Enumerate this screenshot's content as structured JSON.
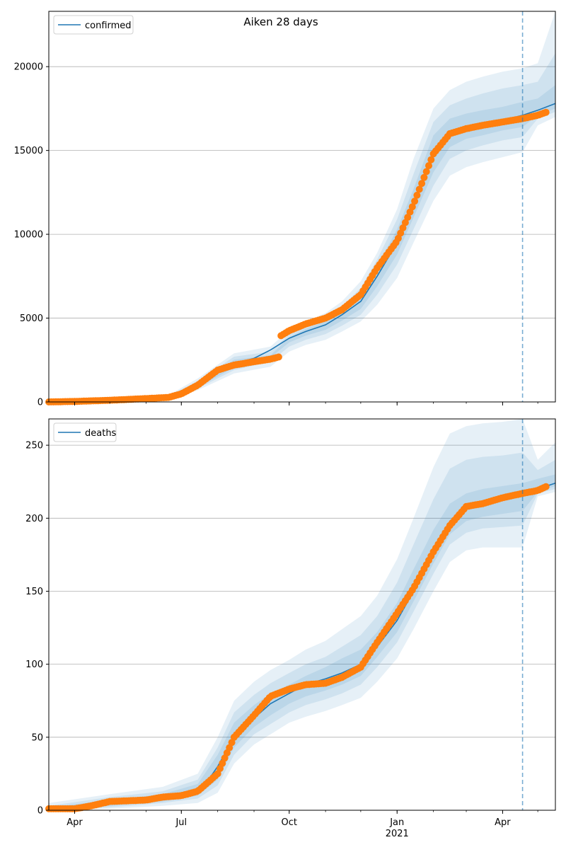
{
  "figure": {
    "suptitle": "Aiken 28 days"
  },
  "colors": {
    "model_line": "#1f77b4",
    "observed_points": "#ff7f0e",
    "band": "#1f77b4",
    "forecast_marker": "#1f77b4",
    "grid": "#b0b0b0",
    "axis": "#000000"
  },
  "chart_data": [
    {
      "type": "line",
      "panel": "top",
      "title": "",
      "xlabel": "",
      "ylabel": "",
      "legend": {
        "entries": [
          "confirmed"
        ],
        "placement": "top-left"
      },
      "grid": "horizontal",
      "x_range": [
        "2020-03-10",
        "2021-05-16"
      ],
      "ylim": [
        0,
        23300
      ],
      "yticks": [
        0,
        5000,
        10000,
        15000,
        20000
      ],
      "ytick_labels": [
        "0",
        "5000",
        "10000",
        "15000",
        "20000"
      ],
      "xticks": [
        {
          "date": "2020-04-01",
          "label": "Apr",
          "sublabel": ""
        },
        {
          "date": "2020-07-01",
          "label": "Jul",
          "sublabel": ""
        },
        {
          "date": "2020-10-01",
          "label": "Oct",
          "sublabel": ""
        },
        {
          "date": "2021-01-01",
          "label": "Jan",
          "sublabel": "2021"
        },
        {
          "date": "2021-04-01",
          "label": "Apr",
          "sublabel": ""
        }
      ],
      "forecast_start": "2021-04-18",
      "series": [
        {
          "name": "confirmed",
          "role": "model",
          "x": [
            "2020-03-10",
            "2020-04-01",
            "2020-05-01",
            "2020-06-01",
            "2020-06-20",
            "2020-07-01",
            "2020-07-15",
            "2020-08-01",
            "2020-08-15",
            "2020-09-01",
            "2020-09-15",
            "2020-10-01",
            "2020-10-15",
            "2020-11-01",
            "2020-11-15",
            "2020-12-01",
            "2020-12-15",
            "2021-01-01",
            "2021-01-15",
            "2021-02-01",
            "2021-02-15",
            "2021-03-01",
            "2021-03-15",
            "2021-04-01",
            "2021-04-18",
            "2021-05-01",
            "2021-05-16"
          ],
          "values": [
            0,
            30,
            100,
            200,
            270,
            480,
            1000,
            2000,
            2300,
            2600,
            3100,
            3800,
            4200,
            4600,
            5200,
            6000,
            7500,
            9500,
            11800,
            14800,
            16000,
            16400,
            16600,
            16800,
            17100,
            17400,
            17800
          ]
        },
        {
          "name": "",
          "role": "observed",
          "x": [
            "2020-03-10",
            "2020-04-01",
            "2020-05-01",
            "2020-06-01",
            "2020-06-20",
            "2020-07-01",
            "2020-07-15",
            "2020-08-01",
            "2020-08-15",
            "2020-09-01",
            "2020-09-15",
            "2020-09-23",
            "2020-09-24",
            "2020-10-01",
            "2020-10-15",
            "2020-11-01",
            "2020-11-15",
            "2020-12-01",
            "2020-12-15",
            "2021-01-01",
            "2021-01-15",
            "2021-02-01",
            "2021-02-15",
            "2021-03-01",
            "2021-03-15",
            "2021-04-01",
            "2021-04-18",
            "2021-05-01",
            "2021-05-09"
          ],
          "values": [
            0,
            30,
            100,
            200,
            270,
            480,
            1000,
            1900,
            2200,
            2400,
            2550,
            2700,
            3950,
            4250,
            4650,
            5000,
            5500,
            6400,
            8000,
            9600,
            11800,
            14800,
            16000,
            16300,
            16500,
            16700,
            16900,
            17100,
            17300
          ]
        }
      ],
      "bands": [
        {
          "x": [
            "2020-03-10",
            "2020-05-01",
            "2020-06-20",
            "2020-07-15",
            "2020-08-15",
            "2020-09-15",
            "2020-10-01",
            "2020-10-15",
            "2020-11-01",
            "2020-11-15",
            "2020-12-01",
            "2020-12-15",
            "2021-01-01",
            "2021-01-15",
            "2021-02-01",
            "2021-02-15",
            "2021-03-01",
            "2021-03-15",
            "2021-04-01",
            "2021-04-18",
            "2021-05-01",
            "2021-05-16"
          ],
          "lower": [
            0,
            60,
            150,
            700,
            1700,
            2100,
            3000,
            3400,
            3700,
            4200,
            4800,
            5800,
            7400,
            9500,
            12000,
            13500,
            14000,
            14300,
            14600,
            14900,
            16500,
            17000
          ],
          "upper": [
            100,
            200,
            400,
            1400,
            2900,
            3300,
            4300,
            4800,
            5300,
            6000,
            7200,
            8900,
            11500,
            14500,
            17500,
            18600,
            19100,
            19400,
            19700,
            19900,
            20200,
            23300
          ]
        },
        {
          "x": [
            "2020-03-10",
            "2020-05-01",
            "2020-06-20",
            "2020-07-15",
            "2020-08-15",
            "2020-09-15",
            "2020-10-01",
            "2020-10-15",
            "2020-11-01",
            "2020-11-15",
            "2020-12-01",
            "2020-12-15",
            "2021-01-01",
            "2021-01-15",
            "2021-02-01",
            "2021-02-15",
            "2021-03-01",
            "2021-03-15",
            "2021-04-01",
            "2021-04-18",
            "2021-05-01",
            "2021-05-16"
          ],
          "lower": [
            0,
            75,
            190,
            800,
            1900,
            2400,
            3300,
            3700,
            4050,
            4550,
            5200,
            6400,
            8200,
            10300,
            12900,
            14500,
            15000,
            15300,
            15600,
            15800,
            16900,
            17300
          ],
          "upper": [
            60,
            150,
            350,
            1250,
            2700,
            3000,
            4050,
            4550,
            5000,
            5700,
            6800,
            8500,
            10900,
            13600,
            16700,
            17700,
            18100,
            18400,
            18700,
            18900,
            19100,
            20800
          ]
        },
        {
          "x": [
            "2020-03-10",
            "2020-05-01",
            "2020-06-20",
            "2020-07-15",
            "2020-08-15",
            "2020-09-15",
            "2020-10-01",
            "2020-10-15",
            "2020-11-01",
            "2020-11-15",
            "2020-12-01",
            "2020-12-15",
            "2021-01-01",
            "2021-01-15",
            "2021-02-01",
            "2021-02-15",
            "2021-03-01",
            "2021-03-15",
            "2021-04-01",
            "2021-04-18",
            "2021-05-01",
            "2021-05-16"
          ],
          "lower": [
            0,
            85,
            220,
            880,
            2050,
            2650,
            3550,
            3950,
            4300,
            4850,
            5550,
            6900,
            8800,
            11000,
            13700,
            15200,
            15700,
            15900,
            16200,
            16400,
            17100,
            17500
          ],
          "upper": [
            40,
            120,
            310,
            1130,
            2520,
            2780,
            3850,
            4350,
            4800,
            5450,
            6450,
            8100,
            10300,
            12700,
            15900,
            16900,
            17200,
            17400,
            17600,
            17900,
            18100,
            18900
          ]
        }
      ]
    },
    {
      "type": "line",
      "panel": "bottom",
      "title": "",
      "xlabel": "",
      "ylabel": "",
      "legend": {
        "entries": [
          "deaths"
        ],
        "placement": "top-left"
      },
      "grid": "horizontal",
      "x_range": [
        "2020-03-10",
        "2021-05-16"
      ],
      "ylim": [
        0,
        268
      ],
      "yticks": [
        0,
        50,
        100,
        150,
        200,
        250
      ],
      "ytick_labels": [
        "0",
        "50",
        "100",
        "150",
        "200",
        "250"
      ],
      "xticks": [
        {
          "date": "2020-04-01",
          "label": "Apr",
          "sublabel": ""
        },
        {
          "date": "2020-07-01",
          "label": "Jul",
          "sublabel": ""
        },
        {
          "date": "2020-10-01",
          "label": "Oct",
          "sublabel": ""
        },
        {
          "date": "2021-01-01",
          "label": "Jan",
          "sublabel": "2021"
        },
        {
          "date": "2021-04-01",
          "label": "Apr",
          "sublabel": ""
        }
      ],
      "forecast_start": "2021-04-18",
      "series": [
        {
          "name": "deaths",
          "role": "model",
          "x": [
            "2020-03-10",
            "2020-04-01",
            "2020-05-01",
            "2020-06-01",
            "2020-07-01",
            "2020-07-20",
            "2020-08-01",
            "2020-08-15",
            "2020-09-01",
            "2020-09-15",
            "2020-10-01",
            "2020-10-15",
            "2020-11-01",
            "2020-11-15",
            "2020-12-01",
            "2020-12-15",
            "2021-01-01",
            "2021-01-15",
            "2021-02-01",
            "2021-02-15",
            "2021-03-01",
            "2021-03-15",
            "2021-04-01",
            "2021-04-18",
            "2021-05-01",
            "2021-05-16"
          ],
          "values": [
            1,
            2,
            5,
            8,
            10,
            16,
            30,
            50,
            63,
            73,
            80,
            86,
            90,
            94,
            100,
            112,
            130,
            150,
            175,
            195,
            208,
            212,
            215,
            217,
            220,
            224
          ]
        },
        {
          "name": "",
          "role": "observed",
          "x": [
            "2020-03-10",
            "2020-04-01",
            "2020-04-15",
            "2020-05-01",
            "2020-06-01",
            "2020-06-15",
            "2020-07-01",
            "2020-07-15",
            "2020-08-01",
            "2020-08-15",
            "2020-09-01",
            "2020-09-15",
            "2020-10-01",
            "2020-10-15",
            "2020-11-01",
            "2020-11-15",
            "2020-12-01",
            "2020-12-15",
            "2021-01-01",
            "2021-01-15",
            "2021-02-01",
            "2021-02-15",
            "2021-03-01",
            "2021-03-15",
            "2021-04-01",
            "2021-04-18",
            "2021-05-01",
            "2021-05-09"
          ],
          "values": [
            1,
            1,
            3,
            6,
            7,
            9,
            10,
            13,
            25,
            50,
            65,
            78,
            83,
            86,
            87,
            91,
            98,
            115,
            135,
            152,
            177,
            195,
            208,
            210,
            214,
            217,
            219,
            222
          ]
        }
      ],
      "bands": [
        {
          "x": [
            "2020-03-10",
            "2020-05-01",
            "2020-06-15",
            "2020-07-15",
            "2020-08-01",
            "2020-08-15",
            "2020-09-01",
            "2020-09-15",
            "2020-10-01",
            "2020-10-15",
            "2020-11-01",
            "2020-11-15",
            "2020-12-01",
            "2020-12-15",
            "2021-01-01",
            "2021-01-15",
            "2021-02-01",
            "2021-02-15",
            "2021-03-01",
            "2021-03-15",
            "2021-04-01",
            "2021-04-18",
            "2021-05-01",
            "2021-05-16"
          ],
          "lower": [
            0,
            1,
            3,
            5,
            12,
            32,
            45,
            52,
            60,
            64,
            68,
            72,
            77,
            88,
            104,
            124,
            150,
            170,
            178,
            180,
            180,
            180,
            215,
            218
          ],
          "upper": [
            5,
            11,
            16,
            25,
            50,
            75,
            88,
            96,
            103,
            110,
            116,
            124,
            133,
            147,
            172,
            200,
            235,
            258,
            263,
            265,
            266,
            268,
            240,
            252
          ]
        },
        {
          "x": [
            "2020-03-10",
            "2020-05-01",
            "2020-06-15",
            "2020-07-15",
            "2020-08-01",
            "2020-08-15",
            "2020-09-01",
            "2020-09-15",
            "2020-10-01",
            "2020-10-15",
            "2020-11-01",
            "2020-11-15",
            "2020-12-01",
            "2020-12-15",
            "2021-01-01",
            "2021-01-15",
            "2021-02-01",
            "2021-02-15",
            "2021-03-01",
            "2021-03-15",
            "2021-04-01",
            "2021-04-18",
            "2021-05-01",
            "2021-05-16"
          ],
          "lower": [
            0,
            2,
            5,
            8,
            17,
            38,
            52,
            59,
            67,
            72,
            76,
            80,
            86,
            98,
            115,
            136,
            162,
            182,
            190,
            193,
            194,
            195,
            217,
            220
          ],
          "upper": [
            3,
            9,
            13,
            21,
            43,
            67,
            79,
            87,
            94,
            100,
            105,
            112,
            120,
            133,
            156,
            182,
            213,
            234,
            240,
            242,
            243,
            245,
            233,
            240
          ]
        },
        {
          "x": [
            "2020-03-10",
            "2020-05-01",
            "2020-06-15",
            "2020-07-15",
            "2020-08-01",
            "2020-08-15",
            "2020-09-01",
            "2020-09-15",
            "2020-10-01",
            "2020-10-15",
            "2020-11-01",
            "2020-11-15",
            "2020-12-01",
            "2020-12-15",
            "2021-01-01",
            "2021-01-15",
            "2021-02-01",
            "2021-02-15",
            "2021-03-01",
            "2021-03-15",
            "2021-04-01",
            "2021-04-18",
            "2021-05-01",
            "2021-05-16"
          ],
          "lower": [
            0,
            3,
            6,
            10,
            21,
            43,
            57,
            65,
            73,
            78,
            82,
            86,
            92,
            105,
            122,
            143,
            169,
            189,
            198,
            201,
            203,
            205,
            218,
            222
          ],
          "upper": [
            2,
            7,
            11,
            18,
            38,
            60,
            72,
            80,
            86,
            92,
            98,
            104,
            110,
            122,
            142,
            165,
            192,
            210,
            217,
            220,
            222,
            224,
            227,
            230
          ]
        }
      ]
    }
  ]
}
